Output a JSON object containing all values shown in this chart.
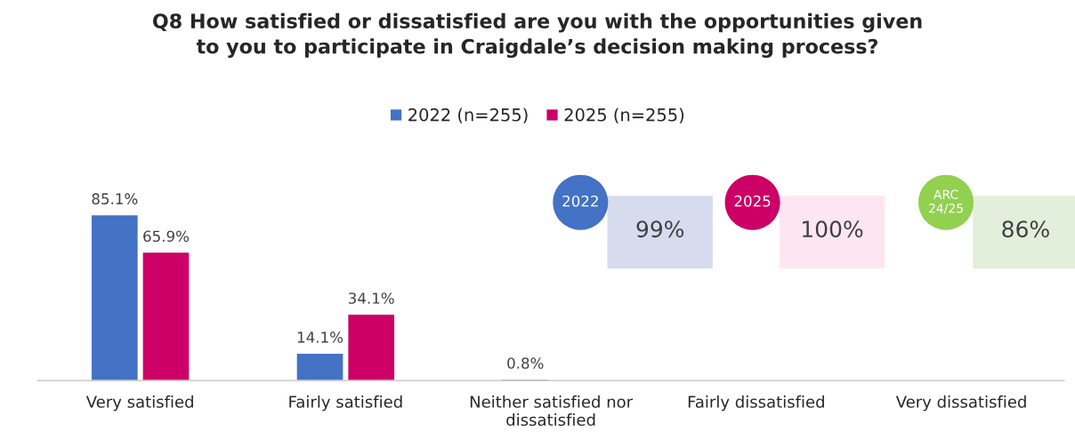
{
  "chart_data": {
    "type": "bar",
    "title": "Q8 How satisfied or dissatisfied are you with the opportunities given\nto you to participate in Craigdale’s decision making process?",
    "categories": [
      "Very satisfied",
      "Fairly satisfied",
      "Neither satisfied nor\ndissatisfied",
      "Fairly dissatisfied",
      "Very dissatisfied"
    ],
    "series": [
      {
        "name": "2022 (n=255)",
        "color": "#4472c4",
        "values": [
          85.1,
          14.1,
          0.8,
          null,
          null
        ],
        "value_labels": [
          "85.1%",
          "14.1%",
          "0.8%",
          null,
          null
        ]
      },
      {
        "name": "2025 (n=255)",
        "color": "#cc0066",
        "values": [
          65.9,
          34.1,
          null,
          null,
          null
        ],
        "value_labels": [
          "65.9%",
          "34.1%",
          null,
          null,
          null
        ]
      }
    ],
    "legend": "top",
    "grid": false,
    "annotations": [
      "2022",
      "99%",
      "2025",
      "100%",
      "ARC\n24/25",
      "86%"
    ]
  }
}
